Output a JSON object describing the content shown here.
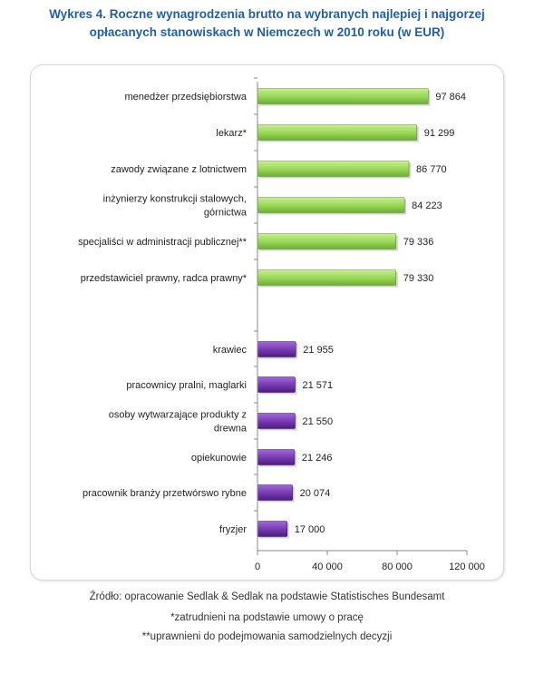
{
  "title_line1": "Wykres 4. Roczne wynagrodzenia brutto na wybranych najlepiej i najgorzej",
  "title_line2": "opłacanych stanowiskach w Niemczech w 2010 roku (w EUR)",
  "notes": {
    "source": "Źródło: opracowanie Sedlak & Sedlak na podstawie Statistisches Bundesamt",
    "note1": "*zatrudnieni na podstawie umowy o pracę",
    "note2": "**uprawnieni do podejmowania samodzielnych decyzji"
  },
  "colors": {
    "high": "#8fd14f",
    "low": "#7a3cb4",
    "title": "#1f5fa8"
  },
  "chart_data": {
    "type": "bar",
    "orientation": "horizontal",
    "title": "Wykres 4. Roczne wynagrodzenia brutto na wybranych najlepiej i najgorzej opłacanych stanowiskach w Niemczech w 2010 roku (w EUR)",
    "xlim": [
      0,
      120000
    ],
    "xticks": [
      "0",
      "40 000",
      "80 000",
      "120 000"
    ],
    "xtick_values": [
      0,
      40000,
      80000,
      120000
    ],
    "grid": false,
    "legend": "none",
    "categories": [
      [
        "menedżer przedsiębiorstwa"
      ],
      [
        "lekarz*"
      ],
      [
        "zawody związane  z lotnictwem"
      ],
      [
        "inżynierzy konstrukcji stalowych,",
        "górnictwa"
      ],
      [
        "specjaliści w administracji publicznej**"
      ],
      [
        "przedstawiciel prawny, radca prawny*"
      ],
      [
        "krawiec"
      ],
      [
        "pracownicy pralni, maglarki"
      ],
      [
        "osoby wytwarzające  produkty z",
        "drewna"
      ],
      [
        "opiekunowie"
      ],
      [
        "pracownik branży przetwórswo rybne"
      ],
      [
        "fryzjer"
      ]
    ],
    "values": [
      97864,
      91299,
      86770,
      84223,
      79336,
      79330,
      21955,
      21571,
      21550,
      21246,
      20074,
      17000
    ],
    "value_labels": [
      "97 864",
      "91 299",
      "86 770",
      "84 223",
      "79 336",
      "79 330",
      "21 955",
      "21 571",
      "21 550",
      "21 246",
      "20 074",
      "17 000"
    ],
    "groups": [
      "high",
      "high",
      "high",
      "high",
      "high",
      "high",
      "low",
      "low",
      "low",
      "low",
      "low",
      "low"
    ]
  }
}
